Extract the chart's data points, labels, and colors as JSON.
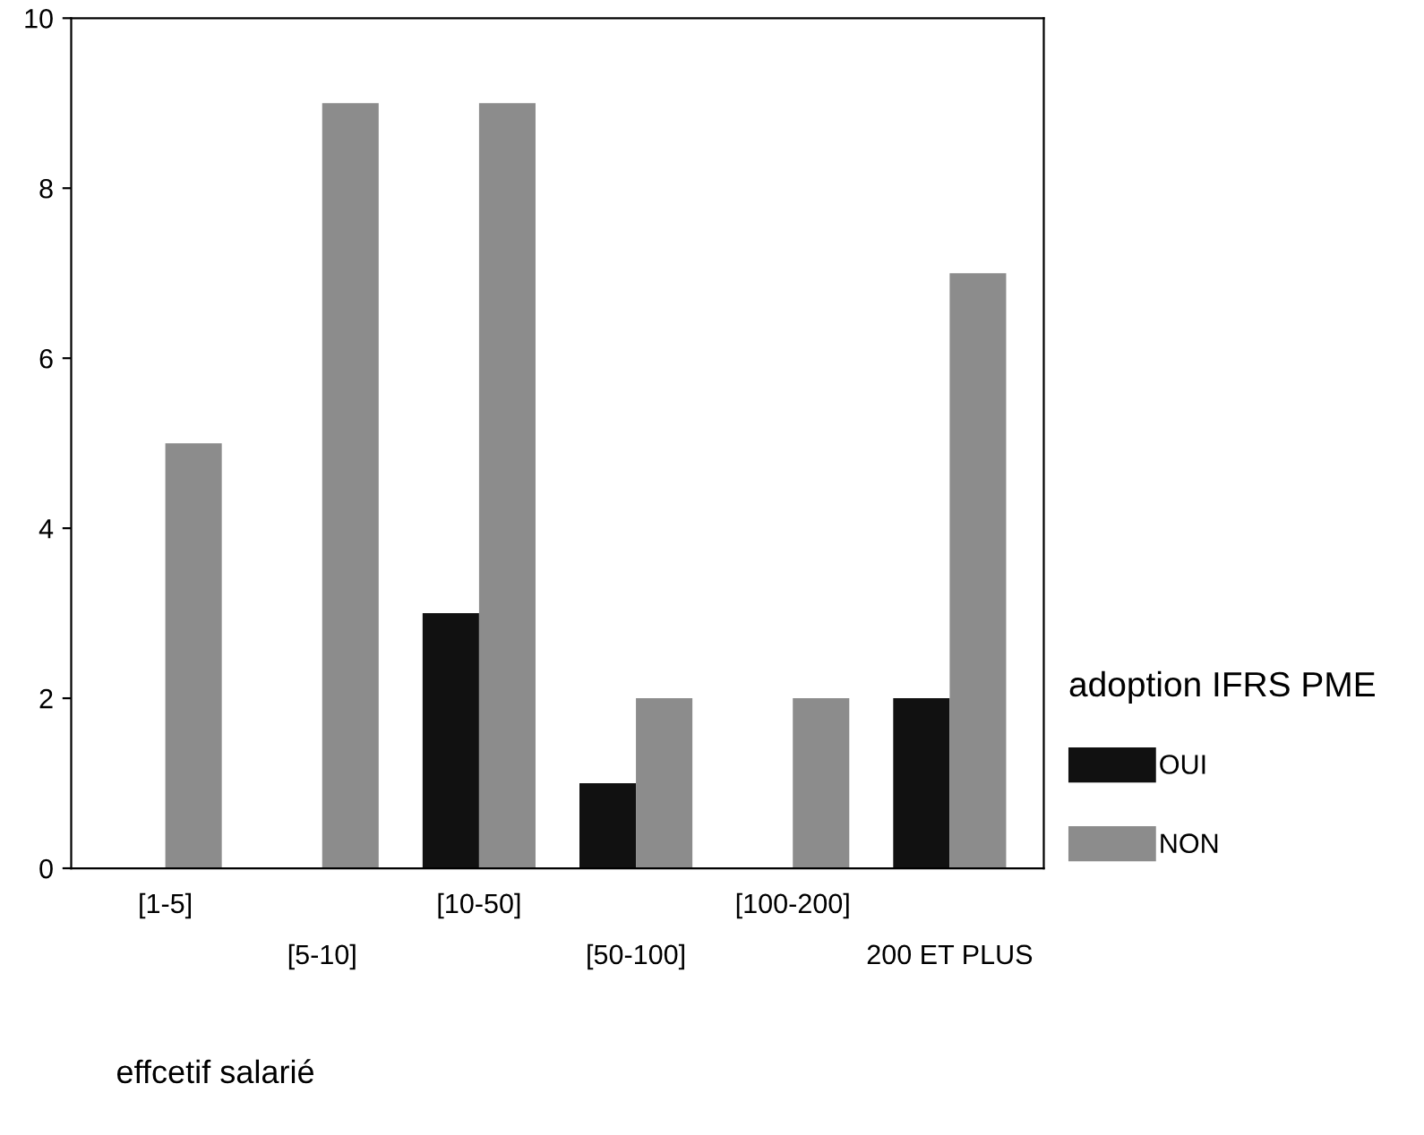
{
  "chart_data": {
    "type": "bar",
    "xlabel": "effcetif salarié",
    "legend_title": "adoption IFRS PME",
    "categories": [
      "[1-5]",
      "[5-10]",
      "[10-50]",
      "[50-100]",
      "[100-200]",
      "200 ET PLUS"
    ],
    "series": [
      {
        "name": "OUI",
        "color": "#111111",
        "values": [
          0,
          0,
          3,
          1,
          0,
          2
        ]
      },
      {
        "name": "NON",
        "color": "#8c8c8c",
        "values": [
          5,
          9,
          9,
          2,
          2,
          7
        ]
      }
    ],
    "ylim": [
      0,
      10
    ],
    "yticks": [
      0,
      2,
      4,
      6,
      8,
      10
    ],
    "grid": false,
    "legend": "right"
  }
}
